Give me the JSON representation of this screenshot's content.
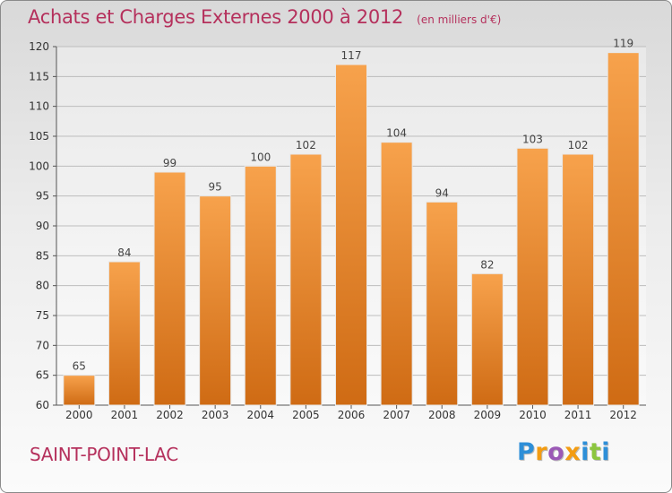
{
  "header": {
    "title": "Achats et Charges Externes 2000 à 2012",
    "subtitle": "(en milliers d'€)"
  },
  "footer": {
    "commune": "SAINT-POINT-LAC",
    "logo": "Proxiti"
  },
  "colors": {
    "bar_light": "#f7a24c",
    "bar_dark": "#cf6b14",
    "title": "#b5305c",
    "logo": [
      "#2e8fd8",
      "#f39c12",
      "#9b59b6",
      "#f39c12",
      "#2e8fd8",
      "#8cc63f",
      "#2e8fd8"
    ]
  },
  "chart_data": {
    "type": "bar",
    "title": "Achats et Charges Externes 2000 à 2012",
    "categories": [
      "2000",
      "2001",
      "2002",
      "2003",
      "2004",
      "2005",
      "2006",
      "2007",
      "2008",
      "2009",
      "2010",
      "2011",
      "2012"
    ],
    "values": [
      65,
      84,
      99,
      95,
      100,
      102,
      117,
      104,
      94,
      82,
      103,
      102,
      119
    ],
    "ylim": [
      60,
      120
    ],
    "yticks": [
      60,
      65,
      70,
      75,
      80,
      85,
      90,
      95,
      100,
      105,
      110,
      115,
      120
    ],
    "grid": true,
    "xlabel": "",
    "ylabel": ""
  }
}
